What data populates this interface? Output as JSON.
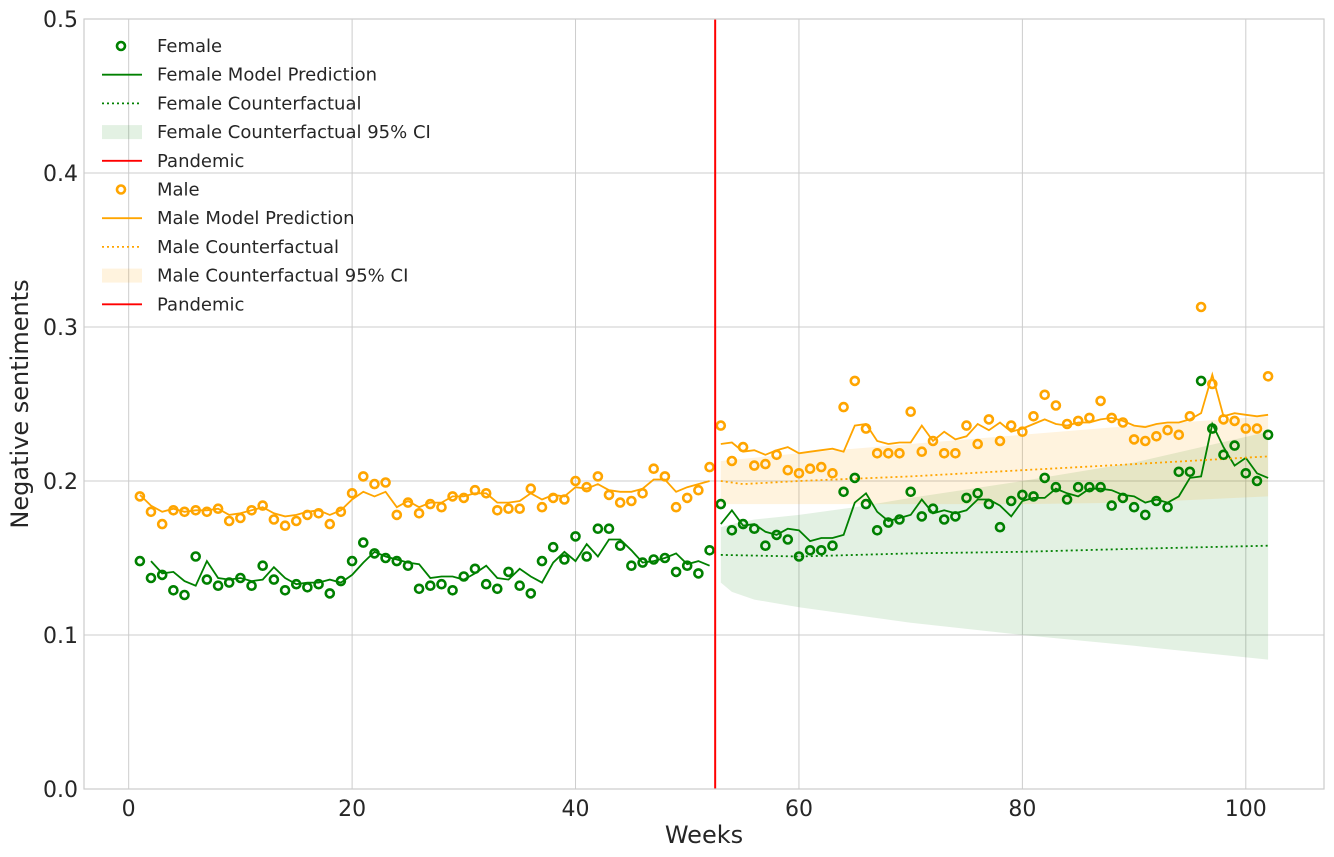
{
  "chart_data": {
    "type": "line",
    "xlabel": "Weeks",
    "ylabel": "Negative sentiments",
    "xlim": [
      -4,
      107
    ],
    "ylim": [
      0,
      0.5
    ],
    "xticks": [
      0,
      20,
      40,
      60,
      80,
      100
    ],
    "yticks": [
      0.0,
      0.1,
      0.2,
      0.3,
      0.4,
      0.5
    ],
    "xtick_labels": [
      "0",
      "20",
      "40",
      "60",
      "80",
      "100"
    ],
    "ytick_labels": [
      "0.0",
      "0.1",
      "0.2",
      "0.3",
      "0.4",
      "0.5"
    ],
    "grid": true,
    "legend_position": "top-left",
    "pandemic_week": 52.5,
    "colors": {
      "female": "#008000",
      "male": "#FFA500",
      "pandemic": "#FF0000",
      "grid": "#cccccc"
    },
    "legend": [
      {
        "label": "Female",
        "style": "marker",
        "color": "#008000"
      },
      {
        "label": "Female Model Prediction",
        "style": "solid",
        "color": "#008000"
      },
      {
        "label": "Female Counterfactual",
        "style": "dotted",
        "color": "#008000"
      },
      {
        "label": "Female Counterfactual 95% CI",
        "style": "band",
        "color": "#008000"
      },
      {
        "label": "Pandemic",
        "style": "solid",
        "color": "#FF0000"
      },
      {
        "label": "Male",
        "style": "marker",
        "color": "#FFA500"
      },
      {
        "label": "Male Model Prediction",
        "style": "solid",
        "color": "#FFA500"
      },
      {
        "label": "Male Counterfactual",
        "style": "dotted",
        "color": "#FFA500"
      },
      {
        "label": "Male Counterfactual 95% CI",
        "style": "band",
        "color": "#FFA500"
      },
      {
        "label": "Pandemic",
        "style": "solid",
        "color": "#FF0000"
      }
    ],
    "series": [
      {
        "name": "Female",
        "kind": "scatter",
        "x": [
          1,
          2,
          3,
          4,
          5,
          6,
          7,
          8,
          9,
          10,
          11,
          12,
          13,
          14,
          15,
          16,
          17,
          18,
          19,
          20,
          21,
          22,
          23,
          24,
          25,
          26,
          27,
          28,
          29,
          30,
          31,
          32,
          33,
          34,
          35,
          36,
          37,
          38,
          39,
          40,
          41,
          42,
          43,
          44,
          45,
          46,
          47,
          48,
          49,
          50,
          51,
          52,
          53,
          54,
          55,
          56,
          57,
          58,
          59,
          60,
          61,
          62,
          63,
          64,
          65,
          66,
          67,
          68,
          69,
          70,
          71,
          72,
          73,
          74,
          75,
          76,
          77,
          78,
          79,
          80,
          81,
          82,
          83,
          84,
          85,
          86,
          87,
          88,
          89,
          90,
          91,
          92,
          93,
          94,
          95,
          96,
          97,
          98,
          99,
          100,
          101,
          102
        ],
        "y": [
          0.148,
          0.137,
          0.139,
          0.129,
          0.126,
          0.151,
          0.136,
          0.132,
          0.134,
          0.137,
          0.132,
          0.145,
          0.136,
          0.129,
          0.133,
          0.131,
          0.133,
          0.127,
          0.135,
          0.148,
          0.16,
          0.153,
          0.15,
          0.148,
          0.145,
          0.13,
          0.132,
          0.133,
          0.129,
          0.138,
          0.143,
          0.133,
          0.13,
          0.141,
          0.132,
          0.127,
          0.148,
          0.157,
          0.149,
          0.164,
          0.151,
          0.169,
          0.169,
          0.158,
          0.145,
          0.147,
          0.149,
          0.15,
          0.141,
          0.145,
          0.14,
          0.155,
          0.185,
          0.168,
          0.172,
          0.169,
          0.158,
          0.165,
          0.162,
          0.151,
          0.155,
          0.155,
          0.158,
          0.193,
          0.202,
          0.185,
          0.168,
          0.173,
          0.175,
          0.193,
          0.177,
          0.182,
          0.175,
          0.177,
          0.189,
          0.192,
          0.185,
          0.17,
          0.187,
          0.191,
          0.19,
          0.202,
          0.196,
          0.188,
          0.196,
          0.196,
          0.196,
          0.184,
          0.189,
          0.183,
          0.178,
          0.187,
          0.183,
          0.206,
          0.206,
          0.265,
          0.234,
          0.217,
          0.223,
          0.205,
          0.2,
          0.23
        ]
      },
      {
        "name": "Female Model Prediction",
        "kind": "line",
        "x": [
          2,
          3,
          4,
          5,
          6,
          7,
          8,
          9,
          10,
          11,
          12,
          13,
          14,
          15,
          16,
          17,
          18,
          19,
          20,
          21,
          22,
          23,
          24,
          25,
          26,
          27,
          28,
          29,
          30,
          31,
          32,
          33,
          34,
          35,
          36,
          37,
          38,
          39,
          40,
          41,
          42,
          43,
          44,
          45,
          46,
          47,
          48,
          49,
          50,
          51,
          52
        ],
        "y": [
          0.148,
          0.14,
          0.141,
          0.135,
          0.132,
          0.148,
          0.137,
          0.136,
          0.137,
          0.135,
          0.136,
          0.144,
          0.137,
          0.133,
          0.134,
          0.134,
          0.136,
          0.134,
          0.139,
          0.147,
          0.154,
          0.151,
          0.149,
          0.147,
          0.146,
          0.137,
          0.138,
          0.138,
          0.136,
          0.14,
          0.145,
          0.137,
          0.136,
          0.143,
          0.138,
          0.134,
          0.147,
          0.154,
          0.148,
          0.159,
          0.151,
          0.162,
          0.162,
          0.155,
          0.147,
          0.148,
          0.15,
          0.153,
          0.146,
          0.148,
          0.145
        ]
      },
      {
        "name": "Female Model Prediction (post)",
        "kind": "line",
        "x": [
          53,
          54,
          55,
          56,
          57,
          58,
          59,
          60,
          61,
          62,
          63,
          64,
          65,
          66,
          67,
          68,
          69,
          70,
          71,
          72,
          73,
          74,
          75,
          76,
          77,
          78,
          79,
          80,
          81,
          82,
          83,
          84,
          85,
          86,
          87,
          88,
          89,
          90,
          91,
          92,
          93,
          94,
          95,
          96,
          97,
          98,
          99,
          100,
          101,
          102
        ],
        "y": [
          0.172,
          0.181,
          0.171,
          0.172,
          0.167,
          0.165,
          0.169,
          0.168,
          0.161,
          0.163,
          0.163,
          0.165,
          0.186,
          0.192,
          0.18,
          0.174,
          0.176,
          0.178,
          0.188,
          0.179,
          0.181,
          0.179,
          0.181,
          0.188,
          0.188,
          0.184,
          0.177,
          0.187,
          0.189,
          0.189,
          0.195,
          0.192,
          0.19,
          0.195,
          0.195,
          0.194,
          0.191,
          0.19,
          0.186,
          0.188,
          0.186,
          0.19,
          0.202,
          0.203,
          0.237,
          0.222,
          0.21,
          0.215,
          0.205,
          0.202
        ]
      },
      {
        "name": "Female Counterfactual",
        "kind": "dotted",
        "x": [
          53,
          60,
          70,
          80,
          90,
          102
        ],
        "y": [
          0.152,
          0.151,
          0.153,
          0.154,
          0.156,
          0.158
        ]
      },
      {
        "name": "Female Counterfactual 95% CI",
        "kind": "band",
        "x": [
          53,
          54,
          56,
          60,
          65,
          70,
          80,
          90,
          102
        ],
        "upper": [
          0.17,
          0.172,
          0.175,
          0.178,
          0.183,
          0.189,
          0.2,
          0.212,
          0.232
        ],
        "lower": [
          0.134,
          0.128,
          0.123,
          0.118,
          0.113,
          0.108,
          0.1,
          0.093,
          0.084
        ]
      },
      {
        "name": "Male",
        "kind": "scatter",
        "x": [
          1,
          2,
          3,
          4,
          5,
          6,
          7,
          8,
          9,
          10,
          11,
          12,
          13,
          14,
          15,
          16,
          17,
          18,
          19,
          20,
          21,
          22,
          23,
          24,
          25,
          26,
          27,
          28,
          29,
          30,
          31,
          32,
          33,
          34,
          35,
          36,
          37,
          38,
          39,
          40,
          41,
          42,
          43,
          44,
          45,
          46,
          47,
          48,
          49,
          50,
          51,
          52,
          53,
          54,
          55,
          56,
          57,
          58,
          59,
          60,
          61,
          62,
          63,
          64,
          65,
          66,
          67,
          68,
          69,
          70,
          71,
          72,
          73,
          74,
          75,
          76,
          77,
          78,
          79,
          80,
          81,
          82,
          83,
          84,
          85,
          86,
          87,
          88,
          89,
          90,
          91,
          92,
          93,
          94,
          95,
          96,
          97,
          98,
          99,
          100,
          101,
          102
        ],
        "y": [
          0.19,
          0.18,
          0.172,
          0.181,
          0.18,
          0.181,
          0.18,
          0.182,
          0.174,
          0.176,
          0.181,
          0.184,
          0.175,
          0.171,
          0.174,
          0.178,
          0.179,
          0.172,
          0.18,
          0.192,
          0.203,
          0.198,
          0.199,
          0.178,
          0.186,
          0.179,
          0.185,
          0.183,
          0.19,
          0.189,
          0.194,
          0.192,
          0.181,
          0.182,
          0.182,
          0.195,
          0.183,
          0.189,
          0.188,
          0.2,
          0.196,
          0.203,
          0.191,
          0.186,
          0.187,
          0.192,
          0.208,
          0.203,
          0.183,
          0.189,
          0.194,
          0.209,
          0.236,
          0.213,
          0.222,
          0.21,
          0.211,
          0.217,
          0.207,
          0.205,
          0.208,
          0.209,
          0.205,
          0.248,
          0.265,
          0.234,
          0.218,
          0.218,
          0.218,
          0.245,
          0.219,
          0.226,
          0.218,
          0.218,
          0.236,
          0.224,
          0.24,
          0.226,
          0.236,
          0.232,
          0.242,
          0.256,
          0.249,
          0.237,
          0.239,
          0.241,
          0.252,
          0.241,
          0.238,
          0.227,
          0.226,
          0.229,
          0.233,
          0.23,
          0.242,
          0.313,
          0.263,
          0.24,
          0.239,
          0.234,
          0.234,
          0.268
        ]
      },
      {
        "name": "Male Model Prediction",
        "kind": "line",
        "x": [
          1,
          2,
          3,
          4,
          5,
          6,
          7,
          8,
          9,
          10,
          11,
          12,
          13,
          14,
          15,
          16,
          17,
          18,
          19,
          20,
          21,
          22,
          23,
          24,
          25,
          26,
          27,
          28,
          29,
          30,
          31,
          32,
          33,
          34,
          35,
          36,
          37,
          38,
          39,
          40,
          41,
          42,
          43,
          44,
          45,
          46,
          47,
          48,
          49,
          50,
          51,
          52
        ],
        "y": [
          0.191,
          0.184,
          0.18,
          0.182,
          0.18,
          0.181,
          0.181,
          0.182,
          0.178,
          0.179,
          0.181,
          0.183,
          0.179,
          0.177,
          0.178,
          0.18,
          0.181,
          0.178,
          0.181,
          0.188,
          0.193,
          0.19,
          0.193,
          0.183,
          0.187,
          0.183,
          0.186,
          0.186,
          0.19,
          0.19,
          0.192,
          0.192,
          0.186,
          0.186,
          0.187,
          0.192,
          0.188,
          0.191,
          0.19,
          0.196,
          0.195,
          0.198,
          0.194,
          0.193,
          0.193,
          0.195,
          0.201,
          0.201,
          0.193,
          0.196,
          0.198,
          0.2
        ]
      },
      {
        "name": "Male Model Prediction (post)",
        "kind": "line",
        "x": [
          53,
          54,
          55,
          56,
          57,
          58,
          59,
          60,
          61,
          62,
          63,
          64,
          65,
          66,
          67,
          68,
          69,
          70,
          71,
          72,
          73,
          74,
          75,
          76,
          77,
          78,
          79,
          80,
          81,
          82,
          83,
          84,
          85,
          86,
          87,
          88,
          89,
          90,
          91,
          92,
          93,
          94,
          95,
          96,
          97,
          98,
          99,
          100,
          101,
          102
        ],
        "y": [
          0.224,
          0.225,
          0.219,
          0.22,
          0.217,
          0.22,
          0.222,
          0.218,
          0.219,
          0.22,
          0.221,
          0.219,
          0.236,
          0.237,
          0.226,
          0.224,
          0.225,
          0.225,
          0.236,
          0.226,
          0.232,
          0.227,
          0.229,
          0.237,
          0.233,
          0.238,
          0.232,
          0.234,
          0.237,
          0.24,
          0.237,
          0.236,
          0.238,
          0.238,
          0.24,
          0.241,
          0.239,
          0.236,
          0.235,
          0.237,
          0.238,
          0.238,
          0.24,
          0.244,
          0.269,
          0.242,
          0.244,
          0.243,
          0.242,
          0.243
        ]
      },
      {
        "name": "Male Counterfactual",
        "kind": "dotted",
        "x": [
          53,
          55,
          60,
          70,
          80,
          90,
          102
        ],
        "y": [
          0.2,
          0.198,
          0.2,
          0.203,
          0.207,
          0.211,
          0.216
        ]
      },
      {
        "name": "Male Counterfactual 95% CI",
        "kind": "band",
        "x": [
          53,
          60,
          70,
          80,
          90,
          102
        ],
        "upper": [
          0.213,
          0.218,
          0.224,
          0.23,
          0.236,
          0.242
        ],
        "lower": [
          0.185,
          0.185,
          0.185,
          0.185,
          0.186,
          0.19
        ]
      }
    ]
  }
}
